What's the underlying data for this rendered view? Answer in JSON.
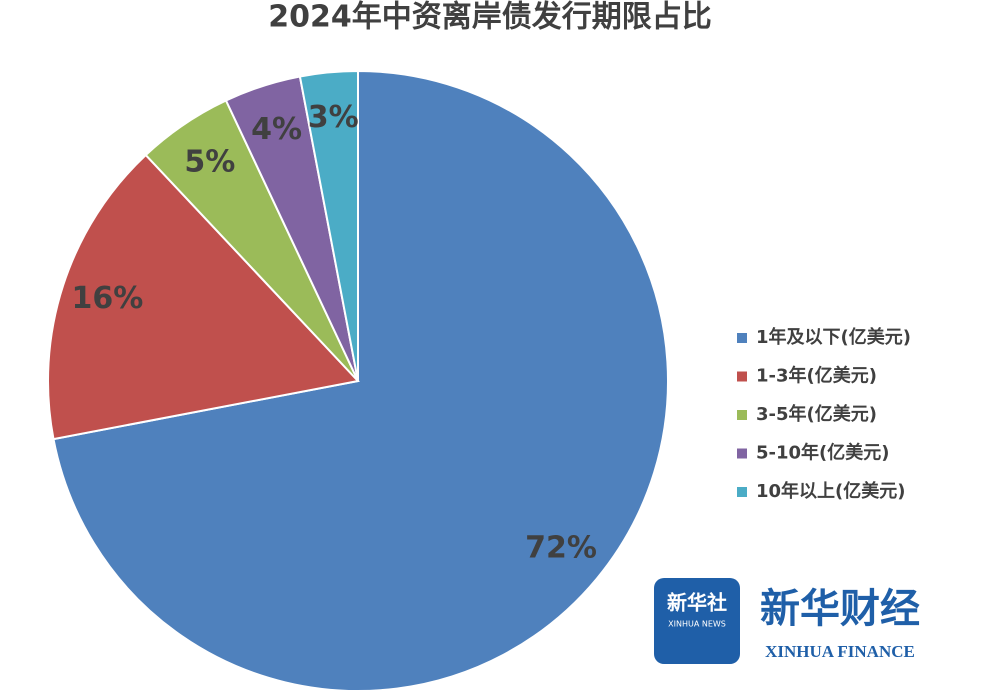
{
  "chart_data": {
    "type": "pie",
    "title": "2024年中资离岸债发行期限占比",
    "categories": [
      "1年及以下(亿美元)",
      "1-3年(亿美元)",
      "3-5年(亿美元)",
      "5-10年(亿美元)",
      "10年以上(亿美元)"
    ],
    "values": [
      72,
      16,
      5,
      4,
      3
    ],
    "value_labels": [
      "72%",
      "16%",
      "5%",
      "4%",
      "3%"
    ],
    "colors": [
      "#4f81bd",
      "#c0504d",
      "#9bbb59",
      "#8064a2",
      "#4bacc6"
    ],
    "legend": "right"
  },
  "logo": {
    "agency": "新华社",
    "agency_en": "XINHUA NEWS",
    "brand": "新华财经",
    "brand_en": "XINHUA FINANCE"
  }
}
